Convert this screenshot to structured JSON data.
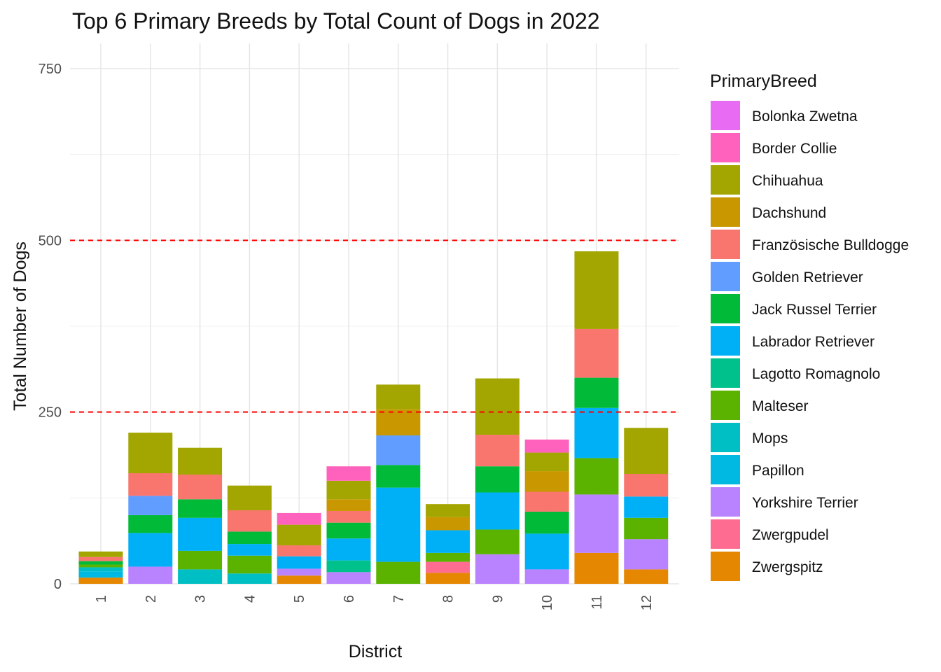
{
  "chart_data": {
    "type": "bar",
    "stacked": true,
    "title": "Top 6 Primary Breeds by Total Count of Dogs in 2022",
    "xlabel": "District",
    "ylabel": "Total Number of Dogs",
    "ylim": [
      0,
      750
    ],
    "yticks": [
      0,
      250,
      500,
      750
    ],
    "reference_lines": [
      250,
      500
    ],
    "reference_line_color": "#ff0000",
    "grid": true,
    "legend_title": "PrimaryBreed",
    "legend_position": "right",
    "categories": [
      "1",
      "2",
      "3",
      "4",
      "5",
      "6",
      "7",
      "8",
      "9",
      "10",
      "11",
      "12"
    ],
    "series": [
      {
        "name": "Bolonka Zwetna",
        "color": "#E76BF3",
        "values": [
          0,
          0,
          0,
          0,
          0,
          0,
          0,
          0,
          0,
          0,
          0,
          0
        ]
      },
      {
        "name": "Border Collie",
        "color": "#FF62BC",
        "values": [
          0,
          0,
          0,
          0,
          17,
          21,
          0,
          0,
          0,
          19,
          0,
          0
        ]
      },
      {
        "name": "Chihuahua",
        "color": "#A3A500",
        "values": [
          8,
          59,
          39,
          36,
          30,
          27,
          36,
          19,
          82,
          27,
          113,
          67
        ]
      },
      {
        "name": "Dachshund",
        "color": "#C99800",
        "values": [
          0,
          0,
          0,
          0,
          0,
          17,
          38,
          19,
          0,
          30,
          0,
          0
        ]
      },
      {
        "name": "Französische Bulldogge",
        "color": "#F8766D",
        "values": [
          6,
          33,
          36,
          31,
          16,
          17,
          0,
          0,
          46,
          29,
          71,
          33
        ]
      },
      {
        "name": "Golden Retriever",
        "color": "#619CFF",
        "values": [
          0,
          28,
          0,
          0,
          0,
          0,
          43,
          0,
          0,
          0,
          0,
          0
        ]
      },
      {
        "name": "Jack Russel Terrier",
        "color": "#00BA38",
        "values": [
          5,
          26,
          27,
          18,
          0,
          23,
          33,
          0,
          38,
          32,
          44,
          0
        ]
      },
      {
        "name": "Labrador Retriever",
        "color": "#00B0F6",
        "values": [
          0,
          49,
          48,
          17,
          18,
          32,
          108,
          33,
          54,
          52,
          73,
          31
        ]
      },
      {
        "name": "Lagotto Romagnolo",
        "color": "#00C08B",
        "values": [
          0,
          0,
          0,
          0,
          0,
          17,
          0,
          0,
          0,
          0,
          0,
          0
        ]
      },
      {
        "name": "Malteser",
        "color": "#5BB300",
        "values": [
          4,
          0,
          27,
          26,
          0,
          0,
          32,
          13,
          36,
          0,
          53,
          31
        ]
      },
      {
        "name": "Mops",
        "color": "#00BFC4",
        "values": [
          6,
          0,
          21,
          15,
          0,
          0,
          0,
          0,
          0,
          0,
          0,
          0
        ]
      },
      {
        "name": "Papillon",
        "color": "#00B9E3",
        "values": [
          9,
          0,
          0,
          0,
          0,
          0,
          0,
          0,
          0,
          0,
          0,
          0
        ]
      },
      {
        "name": "Yorkshire Terrier",
        "color": "#B983FF",
        "values": [
          0,
          25,
          0,
          0,
          10,
          17,
          0,
          0,
          43,
          21,
          85,
          44
        ]
      },
      {
        "name": "Zwergpudel",
        "color": "#FF6C91",
        "values": [
          0,
          0,
          0,
          0,
          0,
          0,
          0,
          16,
          0,
          0,
          0,
          0
        ]
      },
      {
        "name": "Zwergspitz",
        "color": "#E58700",
        "values": [
          9,
          0,
          0,
          0,
          12,
          0,
          0,
          16,
          0,
          0,
          45,
          21
        ]
      }
    ],
    "stack_order": [
      [
        "Zwergspitz",
        "Papillon",
        "Mops",
        "Malteser",
        "Jack Russel Terrier",
        "Französische Bulldogge",
        "Chihuahua"
      ],
      [
        "Yorkshire Terrier",
        "Labrador Retriever",
        "Jack Russel Terrier",
        "Golden Retriever",
        "Französische Bulldogge",
        "Chihuahua"
      ],
      [
        "Mops",
        "Malteser",
        "Labrador Retriever",
        "Jack Russel Terrier",
        "Französische Bulldogge",
        "Chihuahua"
      ],
      [
        "Mops",
        "Malteser",
        "Labrador Retriever",
        "Jack Russel Terrier",
        "Französische Bulldogge",
        "Chihuahua"
      ],
      [
        "Zwergspitz",
        "Yorkshire Terrier",
        "Labrador Retriever",
        "Französische Bulldogge",
        "Chihuahua",
        "Border Collie"
      ],
      [
        "Yorkshire Terrier",
        "Lagotto Romagnolo",
        "Labrador Retriever",
        "Jack Russel Terrier",
        "Französische Bulldogge",
        "Dachshund",
        "Chihuahua",
        "Border Collie"
      ],
      [
        "Malteser",
        "Labrador Retriever",
        "Jack Russel Terrier",
        "Golden Retriever",
        "Dachshund",
        "Chihuahua"
      ],
      [
        "Zwergspitz",
        "Zwergpudel",
        "Malteser",
        "Labrador Retriever",
        "Dachshund",
        "Chihuahua"
      ],
      [
        "Yorkshire Terrier",
        "Malteser",
        "Labrador Retriever",
        "Jack Russel Terrier",
        "Französische Bulldogge",
        "Chihuahua"
      ],
      [
        "Yorkshire Terrier",
        "Labrador Retriever",
        "Jack Russel Terrier",
        "Französische Bulldogge",
        "Dachshund",
        "Chihuahua",
        "Border Collie"
      ],
      [
        "Zwergspitz",
        "Yorkshire Terrier",
        "Malteser",
        "Labrador Retriever",
        "Jack Russel Terrier",
        "Französische Bulldogge",
        "Chihuahua"
      ],
      [
        "Zwergspitz",
        "Yorkshire Terrier",
        "Malteser",
        "Labrador Retriever",
        "Französische Bulldogge",
        "Chihuahua"
      ]
    ]
  }
}
